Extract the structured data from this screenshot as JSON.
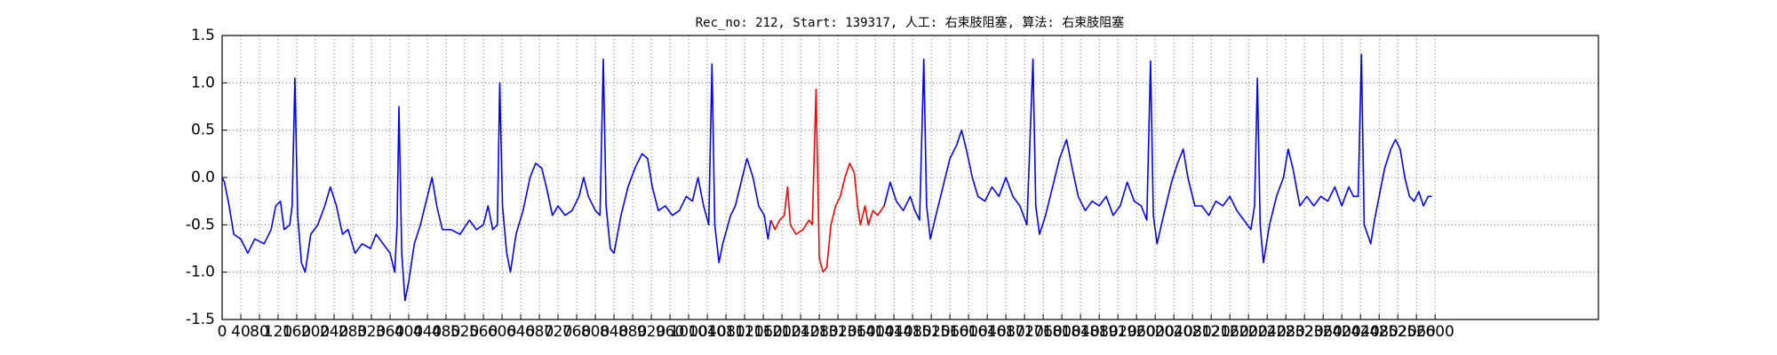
{
  "chart_data": {
    "type": "line",
    "title": "Rec_no: 212, Start: 139317, 人工: 右束肢阻塞, 算法: 右束肢阻塞",
    "xlim": [
      0,
      2950
    ],
    "xticks": [
      0,
      40,
      80,
      120,
      160,
      200,
      240,
      280,
      320,
      360,
      400,
      440,
      480,
      520,
      560,
      600,
      640,
      680,
      720,
      760,
      800,
      840,
      880,
      920,
      960,
      1000,
      1040,
      1080,
      1120,
      1160,
      1200,
      1240,
      1280,
      1320,
      1360,
      1400,
      1440,
      1480,
      1520,
      1560,
      1600,
      1640,
      1680,
      1720,
      1760,
      1800,
      1840,
      1880,
      1920,
      1960,
      2000,
      2040,
      2080,
      2120,
      2160,
      2200,
      2240,
      2280,
      2320,
      2360,
      2400,
      2440,
      2480,
      2520,
      2560,
      2600
    ],
    "ylim": [
      -1.5,
      1.5
    ],
    "yticks": [
      -1.5,
      {
        "value": -1,
        "label": "-1.0"
      },
      -0.5,
      {
        "value": 0,
        "label": "0.0"
      },
      0.5,
      {
        "value": 1,
        "label": "1.0"
      },
      1.5
    ],
    "grid": true,
    "series": [
      {
        "color": "#0000ff",
        "x": [
          0,
          5,
          15,
          25,
          40,
          55,
          70,
          90,
          105,
          115,
          125,
          133,
          145,
          150,
          156,
          162,
          170,
          178,
          190,
          205,
          220,
          232,
          245,
          258,
          270,
          285,
          300,
          318,
          330,
          345,
          360,
          370,
          375,
          379,
          385,
          392,
          400,
          412,
          425,
          440,
          450,
          460,
          472,
          490,
          510,
          530,
          545,
          560,
          570,
          580,
          590,
          595,
          601,
          610,
          618,
          630,
          645,
          660,
          672,
          685,
          695,
          708,
          720,
          735,
          750,
          765,
          775,
          785,
          800,
          810,
          817,
          823,
          832,
          840,
          855,
          870,
          885,
          900,
          912,
          922,
          935,
          950,
          965,
          980,
          995,
          1008,
          1020,
          1032,
          1043,
          1050,
          1056,
          1065,
          1073,
          1090,
          1100,
          1115,
          1125,
          1138,
          1150,
          1162,
          1170,
          1176
        ],
        "values": [
          0,
          -0.05,
          -0.3,
          -0.6,
          -0.65,
          -0.8,
          -0.65,
          -0.7,
          -0.55,
          -0.3,
          -0.25,
          -0.55,
          -0.5,
          -0.3,
          1.05,
          -0.4,
          -0.9,
          -1,
          -0.6,
          -0.5,
          -0.3,
          -0.1,
          -0.3,
          -0.6,
          -0.55,
          -0.8,
          -0.7,
          -0.75,
          -0.6,
          -0.7,
          -0.8,
          -1,
          -0.5,
          0.75,
          -0.8,
          -1.3,
          -1.1,
          -0.7,
          -0.5,
          -0.2,
          0,
          -0.3,
          -0.55,
          -0.55,
          -0.6,
          -0.45,
          -0.55,
          -0.5,
          -0.3,
          -0.55,
          -0.5,
          1,
          -0.3,
          -0.8,
          -1,
          -0.6,
          -0.35,
          0,
          0.15,
          0.1,
          -0.1,
          -0.4,
          -0.3,
          -0.4,
          -0.35,
          -0.2,
          0,
          -0.2,
          -0.35,
          -0.4,
          1.25,
          -0.3,
          -0.75,
          -0.8,
          -0.4,
          -0.1,
          0.1,
          0.25,
          0.2,
          -0.1,
          -0.35,
          -0.3,
          -0.4,
          -0.35,
          -0.2,
          -0.25,
          0,
          -0.3,
          -0.5,
          1.2,
          -0.5,
          -0.9,
          -0.7,
          -0.4,
          -0.3,
          0,
          0.2,
          0,
          -0.3,
          -0.4,
          -0.65,
          -0.45
        ]
      },
      {
        "color": "#ff0000",
        "x": [
          1176,
          1185,
          1195,
          1205,
          1212,
          1218,
          1230,
          1245,
          1258,
          1265,
          1273,
          1280,
          1288,
          1296,
          1305,
          1315,
          1325,
          1335,
          1345,
          1355,
          1362,
          1368,
          1378,
          1385,
          1395,
          1405,
          1419
        ],
        "values": [
          -0.45,
          -0.55,
          -0.45,
          -0.4,
          -0.1,
          -0.5,
          -0.6,
          -0.55,
          -0.45,
          -0.5,
          0.93,
          -0.85,
          -1,
          -0.95,
          -0.5,
          -0.3,
          -0.2,
          0,
          0.15,
          0.05,
          -0.3,
          -0.5,
          -0.3,
          -0.5,
          -0.35,
          -0.4,
          -0.3
        ]
      },
      {
        "color": "#0000ff",
        "x": [
          1419,
          1432,
          1445,
          1460,
          1475,
          1485,
          1495,
          1504,
          1510,
          1518,
          1530,
          1545,
          1560,
          1575,
          1585,
          1595,
          1608,
          1620,
          1635,
          1650,
          1665,
          1680,
          1695,
          1710,
          1725,
          1738,
          1744,
          1752,
          1765,
          1780,
          1795,
          1810,
          1822,
          1835,
          1850,
          1865,
          1880,
          1895,
          1910,
          1925,
          1940,
          1955,
          1970,
          1982,
          1990,
          1996,
          2004,
          2018,
          2035,
          2048,
          2060,
          2070,
          2085,
          2100,
          2115,
          2130,
          2145,
          2160,
          2175,
          2190,
          2205,
          2213,
          2219,
          2225,
          2232,
          2245,
          2260,
          2275,
          2285,
          2295,
          2310,
          2325,
          2340,
          2355,
          2370,
          2385,
          2400,
          2415,
          2425,
          2435,
          2442,
          2448,
          2455,
          2462,
          2470,
          2480,
          2492,
          2505,
          2515,
          2525,
          2535,
          2545,
          2555,
          2565,
          2575,
          2585,
          2593
        ],
        "values": [
          -0.3,
          -0.05,
          -0.25,
          -0.35,
          -0.2,
          -0.35,
          -0.45,
          1.25,
          -0.3,
          -0.65,
          -0.4,
          -0.1,
          0.2,
          0.35,
          0.5,
          0.3,
          0,
          -0.2,
          -0.25,
          -0.1,
          -0.2,
          0,
          -0.2,
          -0.3,
          -0.5,
          1.25,
          -0.3,
          -0.6,
          -0.4,
          -0.1,
          0.2,
          0.4,
          0.1,
          -0.2,
          -0.35,
          -0.25,
          -0.3,
          -0.2,
          -0.4,
          -0.3,
          -0.05,
          -0.25,
          -0.3,
          -0.45,
          1.23,
          -0.4,
          -0.7,
          -0.4,
          -0.05,
          0.15,
          0.3,
          0,
          -0.3,
          -0.3,
          -0.4,
          -0.25,
          -0.3,
          -0.2,
          -0.35,
          -0.45,
          -0.55,
          -0.3,
          1.05,
          -0.5,
          -0.9,
          -0.5,
          -0.2,
          0,
          0.3,
          0.1,
          -0.3,
          -0.2,
          -0.3,
          -0.2,
          -0.25,
          -0.1,
          -0.3,
          -0.1,
          -0.2,
          -0.2,
          1.3,
          -0.5,
          -0.6,
          -0.7,
          -0.45,
          -0.2,
          0.1,
          0.3,
          0.4,
          0.3,
          0,
          -0.2,
          -0.25,
          -0.15,
          -0.3,
          -0.2,
          -0.2
        ]
      }
    ]
  }
}
